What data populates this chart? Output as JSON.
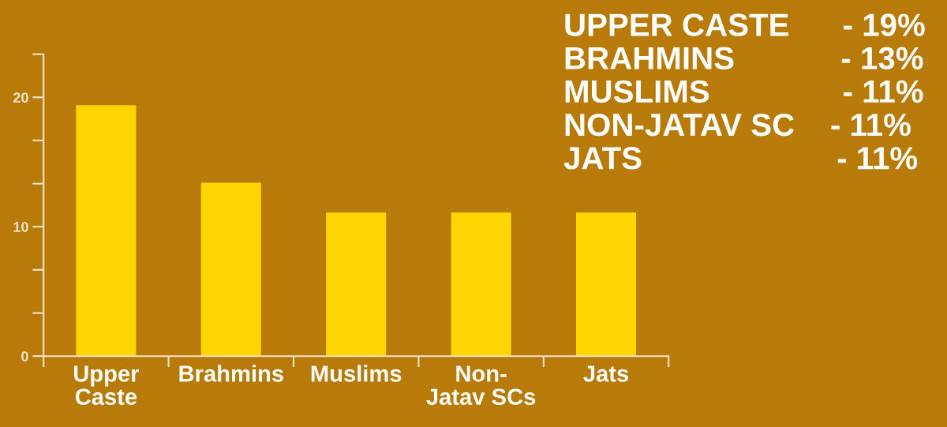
{
  "chart_data": {
    "type": "bar",
    "categories": [
      "Upper Caste",
      "Brahmins",
      "Muslims",
      "Non-Jatav SCs",
      "Jats"
    ],
    "values": [
      19.4,
      13.4,
      11.1,
      11.1,
      11.1
    ],
    "color": "#ffd500",
    "ylim": [
      0,
      23.33
    ],
    "yticks": [
      0,
      {
        "value": 3.33,
        "label": null
      },
      {
        "value": 6.67,
        "label": null
      },
      10,
      {
        "value": 13.33,
        "label": null
      },
      {
        "value": 16.67,
        "label": null
      },
      20,
      {
        "value": 23.33,
        "label": null
      }
    ],
    "grid": false,
    "annotations": [
      "UPPER CASTE      - 19%",
      "BRAHMINS            - 13%",
      "MUSLIMS               - 11%",
      "NON-JATAV SC    - 11%",
      "JATS                      - 11%"
    ]
  }
}
